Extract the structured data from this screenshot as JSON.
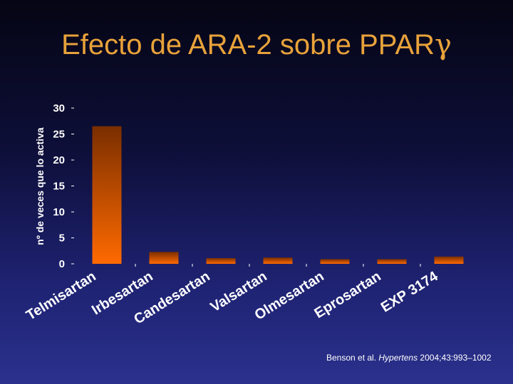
{
  "slide": {
    "title_main": "Efecto de ARA-2 sobre PPAR",
    "title_symbol": "γ"
  },
  "citation": {
    "prefix": "Benson et al. ",
    "journal": "Hypertens",
    "suffix": " 2004;43:993–1002"
  },
  "colors": {
    "bar_top": "#7a2e00",
    "bar_bottom": "#ff6a00",
    "title": "#e8a23a"
  },
  "chart_data": {
    "type": "bar",
    "title": "",
    "xlabel": "",
    "ylabel": "nº de veces que lo activa",
    "ylim": [
      0,
      30
    ],
    "yticks": [
      0,
      5,
      10,
      15,
      20,
      25,
      30
    ],
    "categories": [
      "Telmisartan",
      "Irbesartan",
      "Candesartan",
      "Valsartan",
      "Olmesartan",
      "Eprosartan",
      "EXP 3174"
    ],
    "values": [
      26.5,
      2.3,
      1.1,
      1.2,
      0.9,
      0.9,
      1.4
    ],
    "grid": false,
    "legend": "none"
  }
}
